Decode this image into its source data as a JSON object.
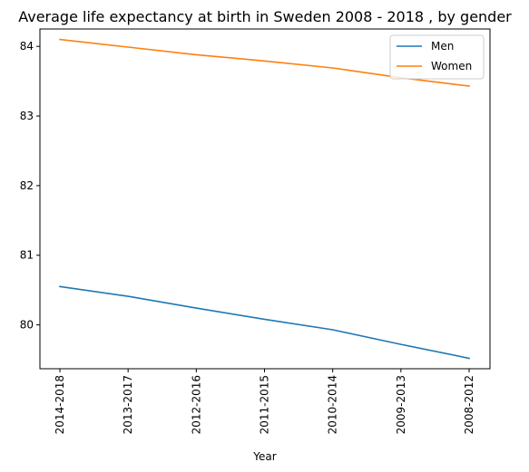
{
  "chart_data": {
    "type": "line",
    "title": "Average life expectancy at birth in Sweden 2008 - 2018 , by gender",
    "xlabel": "Year",
    "ylabel": "",
    "categories": [
      "2014-2018",
      "2013-2017",
      "2012-2016",
      "2011-2015",
      "2010-2014",
      "2009-2013",
      "2008-2012"
    ],
    "series": [
      {
        "name": "Men",
        "color": "#1f77b4",
        "values": [
          80.55,
          80.41,
          80.24,
          80.08,
          79.93,
          79.72,
          79.52
        ]
      },
      {
        "name": "Women",
        "color": "#ff7f0e",
        "values": [
          84.1,
          83.99,
          83.88,
          83.79,
          83.69,
          83.55,
          83.43
        ]
      }
    ],
    "yticks": [
      80,
      81,
      82,
      83,
      84
    ],
    "ylim": [
      79.37,
      84.25
    ],
    "grid": false,
    "legend": "top-right"
  }
}
